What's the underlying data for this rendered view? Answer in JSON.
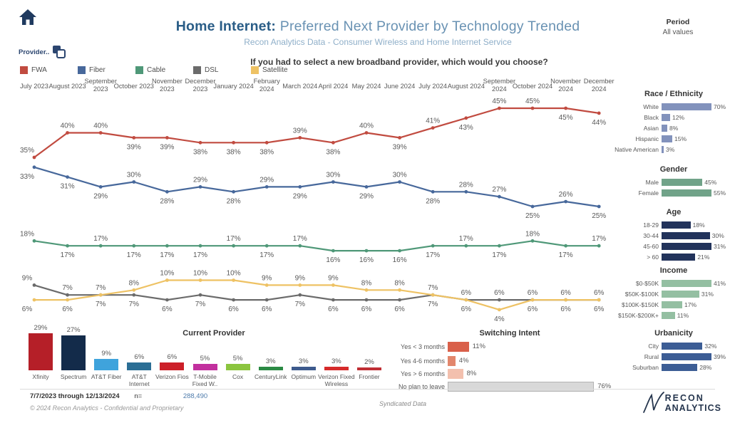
{
  "header": {
    "title_strong": "Home Internet:",
    "title_rest": " Preferred Next Provider by Technology Trended",
    "subtitle": "Recon Analytics Data - Consumer Wireless and Home Internet Service",
    "question": "If you had to select a new broadband provider, which would you choose?",
    "provider_control_label": "Provider..",
    "period_label": "Period",
    "period_value": "All values"
  },
  "icons": {
    "home": "home-icon",
    "provider_control": "duplicate-panels-icon",
    "logo_swoosh": "recon-swoosh-icon"
  },
  "chart_data": [
    {
      "id": "trend",
      "type": "line",
      "title": "Preferred Next Provider by Technology Trended",
      "unit": "%",
      "ylim": [
        0,
        50
      ],
      "grid": false,
      "legend_position": "top-left",
      "x": [
        "July 2023",
        "August 2023",
        "September 2023",
        "October 2023",
        "November 2023",
        "December 2023",
        "January 2024",
        "February 2024",
        "March 2024",
        "April 2024",
        "May 2024",
        "June 2024",
        "July 2024",
        "August 2024",
        "September 2024",
        "October 2024",
        "November 2024",
        "December 2024"
      ],
      "series": [
        {
          "name": "FWA",
          "color": "#c14b40",
          "values": [
            35,
            40,
            40,
            39,
            39,
            38,
            38,
            38,
            39,
            38,
            40,
            39,
            41,
            43,
            45,
            45,
            45,
            44
          ],
          "label_pos": [
            "a",
            "a",
            "a",
            "b",
            "b",
            "b",
            "b",
            "b",
            "a",
            "b",
            "a",
            "b",
            "a",
            "b",
            "a",
            "a",
            "b",
            "b"
          ]
        },
        {
          "name": "Fiber",
          "color": "#47689b",
          "values": [
            33,
            31,
            29,
            30,
            28,
            29,
            28,
            29,
            29,
            30,
            29,
            30,
            28,
            28,
            27,
            25,
            26,
            25
          ],
          "label_pos": [
            "b",
            "b",
            "b",
            "a",
            "b",
            "a",
            "b",
            "a",
            "b",
            "a",
            "b",
            "a",
            "b",
            "a",
            "a",
            "b",
            "a",
            "b"
          ]
        },
        {
          "name": "Cable",
          "color": "#4f9878",
          "values": [
            18,
            17,
            17,
            17,
            17,
            17,
            17,
            17,
            17,
            16,
            16,
            16,
            17,
            17,
            17,
            18,
            17,
            17
          ],
          "label_pos": [
            "a",
            "b",
            "a",
            "b",
            "b",
            "b",
            "a",
            "b",
            "a",
            "b",
            "b",
            "b",
            "b",
            "a",
            "b",
            "a",
            "b",
            "a"
          ]
        },
        {
          "name": "DSL",
          "color": "#6b6b6b",
          "values": [
            9,
            7,
            7,
            7,
            6,
            7,
            6,
            6,
            7,
            6,
            6,
            6,
            7,
            6,
            6,
            6,
            6,
            6
          ],
          "label_pos": [
            "a",
            "a",
            "a",
            "b",
            "b",
            "b",
            "b",
            "b",
            "b",
            "b",
            "b",
            "b",
            "b",
            "a",
            "a",
            "a",
            "a",
            "a"
          ]
        },
        {
          "name": "Satellite",
          "color": "#eec264",
          "values": [
            6,
            6,
            7,
            8,
            10,
            10,
            10,
            9,
            9,
            9,
            8,
            8,
            7,
            6,
            4,
            6,
            6,
            6
          ],
          "label_pos": [
            "b",
            "b",
            "b",
            "a",
            "a",
            "a",
            "a",
            "a",
            "a",
            "a",
            "a",
            "a",
            "a",
            "b",
            "b",
            "b",
            "b",
            "b"
          ]
        }
      ]
    },
    {
      "id": "race",
      "type": "bar",
      "title": "Race / Ethnicity",
      "color": "#8292bc",
      "categories": [
        "White",
        "Black",
        "Asian",
        "Hispanic",
        "Native American"
      ],
      "values": [
        70,
        12,
        8,
        15,
        3
      ],
      "unit": "%"
    },
    {
      "id": "gender",
      "type": "bar",
      "title": "Gender",
      "color": "#71a389",
      "categories": [
        "Male",
        "Female"
      ],
      "values": [
        45,
        55
      ],
      "unit": "%"
    },
    {
      "id": "age",
      "type": "bar",
      "title": "Age",
      "color": "#22335b",
      "categories": [
        "18-29",
        "30-44",
        "45-60",
        "> 60"
      ],
      "values": [
        18,
        30,
        31,
        21
      ],
      "unit": "%"
    },
    {
      "id": "income",
      "type": "bar",
      "title": "Income",
      "color": "#94bfa2",
      "categories": [
        "$0-$50K",
        "$50K-$100K",
        "$100K-$150K",
        "$150K-$200K+"
      ],
      "values": [
        41,
        31,
        17,
        11
      ],
      "unit": "%"
    },
    {
      "id": "urbanicity",
      "type": "bar",
      "title": "Urbanicity",
      "color": "#3c5d95",
      "categories": [
        "City",
        "Rural",
        "Suburban"
      ],
      "values": [
        32,
        39,
        28
      ],
      "unit": "%"
    },
    {
      "id": "provider",
      "type": "bar",
      "title": "Current Provider",
      "unit": "%",
      "categories": [
        "Xfinity",
        "Spectrum",
        "AT&T Fiber",
        "AT&T Internet",
        "Verizon Fios",
        "T-Mobile Fixed W..",
        "Cox",
        "CenturyLink",
        "Optimum",
        "Verizon Fixed Wireless",
        "Frontier"
      ],
      "values": [
        29,
        27,
        9,
        6,
        6,
        5,
        5,
        3,
        3,
        3,
        2
      ],
      "colors": [
        "#b51f28",
        "#132b4a",
        "#3fa3dc",
        "#2b6e95",
        "#cc2029",
        "#c2309e",
        "#8bc53f",
        "#2b8a44",
        "#3d5a8d",
        "#d62b2b",
        "#bf2e34"
      ]
    },
    {
      "id": "switching",
      "type": "bar",
      "title": "Switching Intent",
      "unit": "%",
      "categories": [
        "Yes < 3 months",
        "Yes 4-6 months",
        "Yes > 6 months",
        "No plan to leave"
      ],
      "values": [
        11,
        4,
        8,
        76
      ],
      "colors": [
        "#d9604a",
        "#e2866c",
        "#f3c0ae",
        "#d8d8d8"
      ]
    }
  ],
  "footer": {
    "date_range": "7/7/2023 through 12/13/2024",
    "n_label": "n=",
    "n_value": "288,490",
    "copyright": "© 2024 Recon Analytics - Confidential and Proprietary",
    "syndicated": "Syndicated Data",
    "logo_line1": "RECON",
    "logo_line2": "ANALYTICS"
  }
}
